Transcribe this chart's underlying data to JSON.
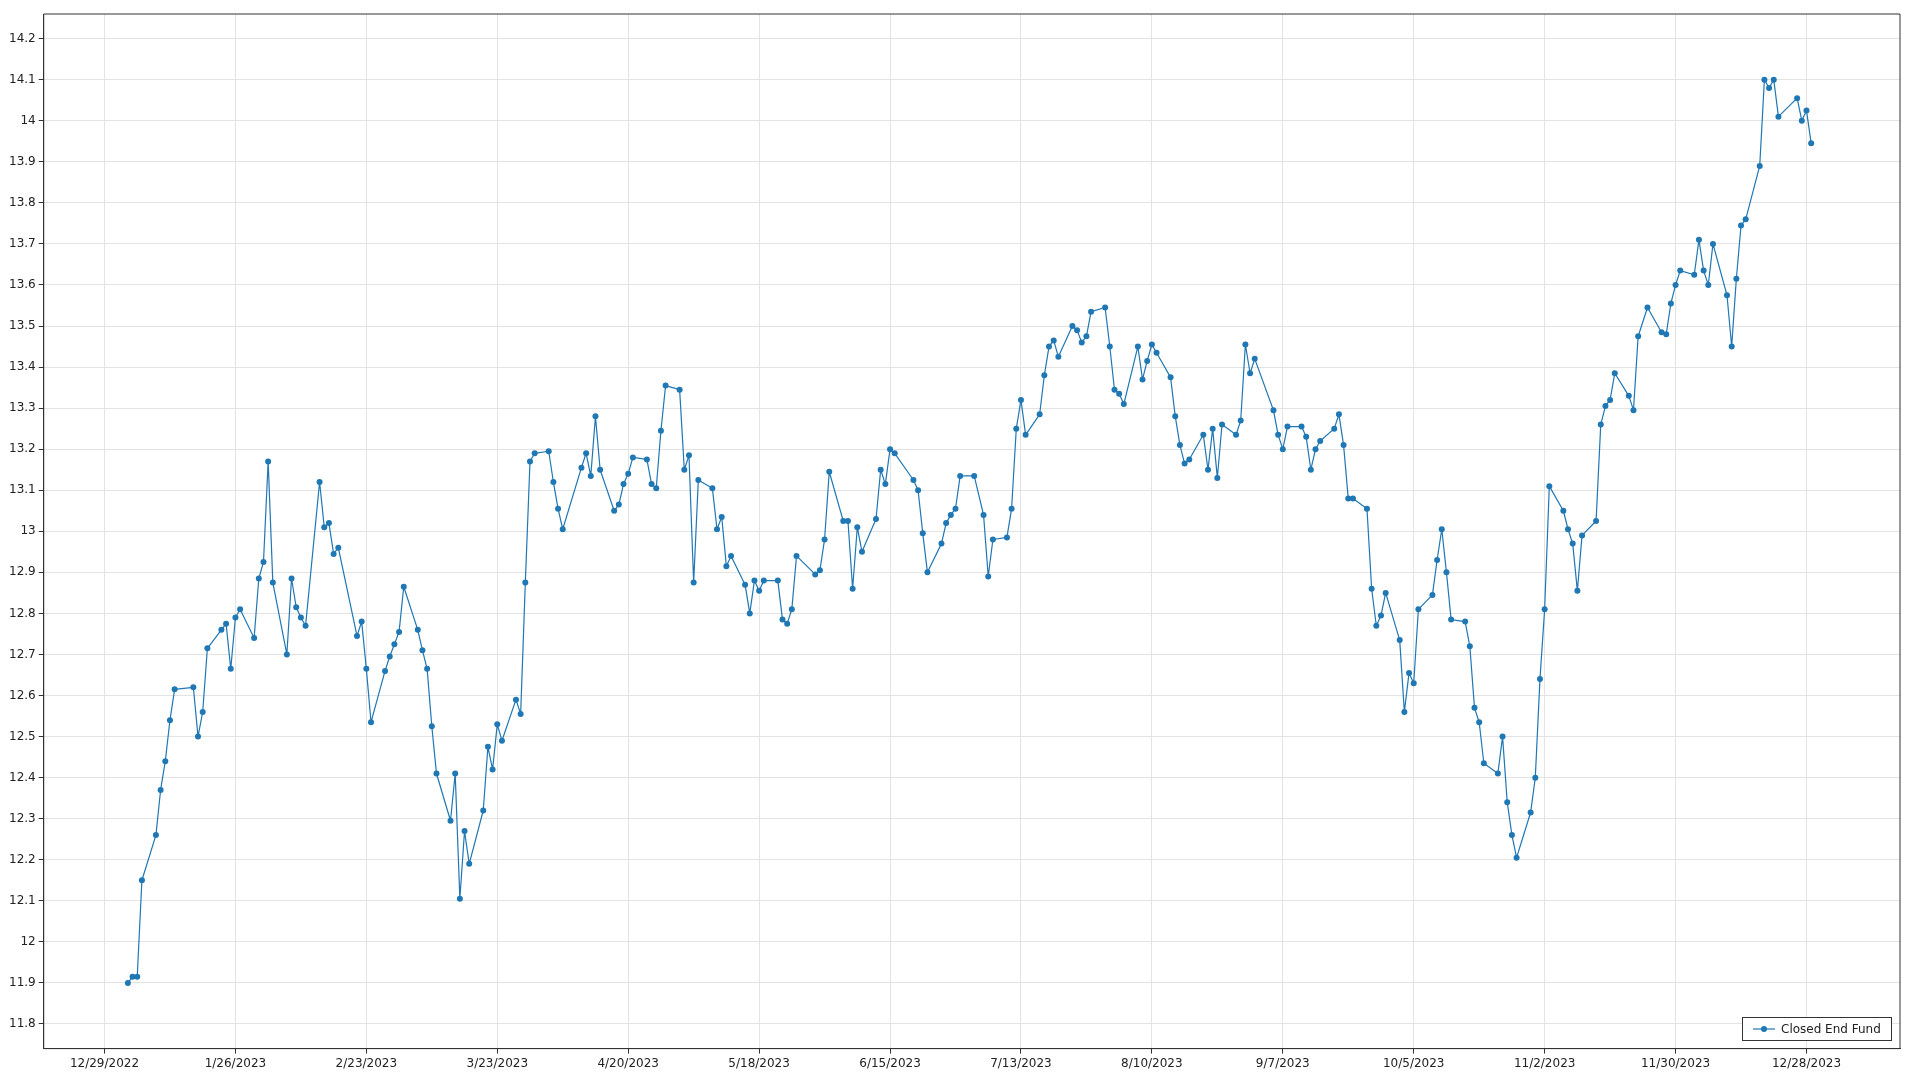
{
  "chart_data": {
    "type": "line",
    "series": [
      {
        "name": "Closed End Fund",
        "color": "#1f77b4",
        "x": [
          "2023-01-03",
          "2023-01-04",
          "2023-01-05",
          "2023-01-06",
          "2023-01-09",
          "2023-01-10",
          "2023-01-11",
          "2023-01-12",
          "2023-01-13",
          "2023-01-17",
          "2023-01-18",
          "2023-01-19",
          "2023-01-20",
          "2023-01-23",
          "2023-01-24",
          "2023-01-25",
          "2023-01-26",
          "2023-01-27",
          "2023-01-30",
          "2023-01-31",
          "2023-02-01",
          "2023-02-02",
          "2023-02-03",
          "2023-02-06",
          "2023-02-07",
          "2023-02-08",
          "2023-02-09",
          "2023-02-10",
          "2023-02-13",
          "2023-02-14",
          "2023-02-15",
          "2023-02-16",
          "2023-02-17",
          "2023-02-21",
          "2023-02-22",
          "2023-02-23",
          "2023-02-24",
          "2023-02-27",
          "2023-02-28",
          "2023-03-01",
          "2023-03-02",
          "2023-03-03",
          "2023-03-06",
          "2023-03-07",
          "2023-03-08",
          "2023-03-09",
          "2023-03-10",
          "2023-03-13",
          "2023-03-14",
          "2023-03-15",
          "2023-03-16",
          "2023-03-17",
          "2023-03-20",
          "2023-03-21",
          "2023-03-22",
          "2023-03-23",
          "2023-03-24",
          "2023-03-27",
          "2023-03-28",
          "2023-03-29",
          "2023-03-30",
          "2023-03-31",
          "2023-04-03",
          "2023-04-04",
          "2023-04-05",
          "2023-04-06",
          "2023-04-10",
          "2023-04-11",
          "2023-04-12",
          "2023-04-13",
          "2023-04-14",
          "2023-04-17",
          "2023-04-18",
          "2023-04-19",
          "2023-04-20",
          "2023-04-21",
          "2023-04-24",
          "2023-04-25",
          "2023-04-26",
          "2023-04-27",
          "2023-04-28",
          "2023-05-01",
          "2023-05-02",
          "2023-05-03",
          "2023-05-04",
          "2023-05-05",
          "2023-05-08",
          "2023-05-09",
          "2023-05-10",
          "2023-05-11",
          "2023-05-12",
          "2023-05-15",
          "2023-05-16",
          "2023-05-17",
          "2023-05-18",
          "2023-05-19",
          "2023-05-22",
          "2023-05-23",
          "2023-05-24",
          "2023-05-25",
          "2023-05-26",
          "2023-05-30",
          "2023-05-31",
          "2023-06-01",
          "2023-06-02",
          "2023-06-05",
          "2023-06-06",
          "2023-06-07",
          "2023-06-08",
          "2023-06-09",
          "2023-06-12",
          "2023-06-13",
          "2023-06-14",
          "2023-06-15",
          "2023-06-16",
          "2023-06-20",
          "2023-06-21",
          "2023-06-22",
          "2023-06-23",
          "2023-06-26",
          "2023-06-27",
          "2023-06-28",
          "2023-06-29",
          "2023-06-30",
          "2023-07-03",
          "2023-07-05",
          "2023-07-06",
          "2023-07-07",
          "2023-07-10",
          "2023-07-11",
          "2023-07-12",
          "2023-07-13",
          "2023-07-14",
          "2023-07-17",
          "2023-07-18",
          "2023-07-19",
          "2023-07-20",
          "2023-07-21",
          "2023-07-24",
          "2023-07-25",
          "2023-07-26",
          "2023-07-27",
          "2023-07-28",
          "2023-07-31",
          "2023-08-01",
          "2023-08-02",
          "2023-08-03",
          "2023-08-04",
          "2023-08-07",
          "2023-08-08",
          "2023-08-09",
          "2023-08-10",
          "2023-08-11",
          "2023-08-14",
          "2023-08-15",
          "2023-08-16",
          "2023-08-17",
          "2023-08-18",
          "2023-08-21",
          "2023-08-22",
          "2023-08-23",
          "2023-08-24",
          "2023-08-25",
          "2023-08-28",
          "2023-08-29",
          "2023-08-30",
          "2023-08-31",
          "2023-09-01",
          "2023-09-05",
          "2023-09-06",
          "2023-09-07",
          "2023-09-08",
          "2023-09-11",
          "2023-09-12",
          "2023-09-13",
          "2023-09-14",
          "2023-09-15",
          "2023-09-18",
          "2023-09-19",
          "2023-09-20",
          "2023-09-21",
          "2023-09-22",
          "2023-09-25",
          "2023-09-26",
          "2023-09-27",
          "2023-09-28",
          "2023-09-29",
          "2023-10-02",
          "2023-10-03",
          "2023-10-04",
          "2023-10-05",
          "2023-10-06",
          "2023-10-09",
          "2023-10-10",
          "2023-10-11",
          "2023-10-12",
          "2023-10-13",
          "2023-10-16",
          "2023-10-17",
          "2023-10-18",
          "2023-10-19",
          "2023-10-20",
          "2023-10-23",
          "2023-10-24",
          "2023-10-25",
          "2023-10-26",
          "2023-10-27",
          "2023-10-30",
          "2023-10-31",
          "2023-11-01",
          "2023-11-02",
          "2023-11-03",
          "2023-11-06",
          "2023-11-07",
          "2023-11-08",
          "2023-11-09",
          "2023-11-10",
          "2023-11-13",
          "2023-11-14",
          "2023-11-15",
          "2023-11-16",
          "2023-11-17",
          "2023-11-20",
          "2023-11-21",
          "2023-11-22",
          "2023-11-24",
          "2023-11-27",
          "2023-11-28",
          "2023-11-29",
          "2023-11-30",
          "2023-12-01",
          "2023-12-04",
          "2023-12-05",
          "2023-12-06",
          "2023-12-07",
          "2023-12-08",
          "2023-12-11",
          "2023-12-12",
          "2023-12-13",
          "2023-12-14",
          "2023-12-15",
          "2023-12-18",
          "2023-12-19",
          "2023-12-20",
          "2023-12-21",
          "2023-12-22",
          "2023-12-26",
          "2023-12-27",
          "2023-12-28",
          "2023-12-29"
        ],
        "values": [
          11.9,
          11.915,
          11.915,
          12.15,
          12.26,
          12.37,
          12.44,
          12.54,
          12.615,
          12.62,
          12.5,
          12.56,
          12.715,
          12.76,
          12.775,
          12.665,
          12.79,
          12.81,
          12.74,
          12.885,
          12.925,
          13.17,
          12.875,
          12.7,
          12.885,
          12.815,
          12.79,
          12.77,
          13.12,
          13.01,
          13.02,
          12.945,
          12.96,
          12.745,
          12.78,
          12.665,
          12.535,
          12.66,
          12.695,
          12.725,
          12.755,
          12.865,
          12.76,
          12.71,
          12.665,
          12.525,
          12.41,
          12.295,
          12.41,
          12.105,
          12.27,
          12.19,
          12.32,
          12.475,
          12.42,
          12.53,
          12.49,
          12.59,
          12.555,
          12.875,
          13.17,
          13.19,
          13.195,
          13.12,
          13.055,
          13.005,
          13.155,
          13.19,
          13.135,
          13.28,
          13.15,
          13.05,
          13.065,
          13.115,
          13.14,
          13.18,
          13.175,
          13.115,
          13.105,
          13.245,
          13.355,
          13.345,
          13.15,
          13.185,
          12.875,
          13.125,
          13.105,
          13.005,
          13.035,
          12.915,
          12.94,
          12.87,
          12.8,
          12.88,
          12.855,
          12.88,
          12.88,
          12.785,
          12.775,
          12.81,
          12.94,
          12.895,
          12.905,
          12.98,
          13.145,
          13.025,
          13.025,
          12.86,
          13.01,
          12.95,
          13.03,
          13.15,
          13.115,
          13.2,
          13.19,
          13.125,
          13.1,
          12.995,
          12.9,
          12.97,
          13.02,
          13.04,
          13.055,
          13.135,
          13.135,
          13.04,
          12.89,
          12.98,
          12.985,
          13.055,
          13.25,
          13.32,
          13.235,
          13.285,
          13.38,
          13.45,
          13.465,
          13.425,
          13.5,
          13.49,
          13.46,
          13.475,
          13.535,
          13.545,
          13.45,
          13.345,
          13.335,
          13.31,
          13.45,
          13.37,
          13.415,
          13.455,
          13.435,
          13.375,
          13.28,
          13.21,
          13.165,
          13.175,
          13.235,
          13.15,
          13.25,
          13.13,
          13.26,
          13.235,
          13.27,
          13.455,
          13.385,
          13.42,
          13.295,
          13.235,
          13.2,
          13.255,
          13.255,
          13.23,
          13.15,
          13.2,
          13.22,
          13.25,
          13.285,
          13.21,
          13.08,
          13.08,
          13.055,
          12.86,
          12.77,
          12.795,
          12.85,
          12.735,
          12.56,
          12.655,
          12.63,
          12.81,
          12.845,
          12.93,
          13.005,
          12.9,
          12.785,
          12.78,
          12.72,
          12.57,
          12.535,
          12.435,
          12.41,
          12.5,
          12.34,
          12.26,
          12.205,
          12.315,
          12.4,
          12.64,
          12.81,
          13.11,
          13.05,
          13.005,
          12.97,
          12.855,
          12.99,
          13.025,
          13.26,
          13.305,
          13.32,
          13.385,
          13.33,
          13.295,
          13.475,
          13.545,
          13.485,
          13.48,
          13.555,
          13.6,
          13.635,
          13.625,
          13.71,
          13.635,
          13.6,
          13.7,
          13.575,
          13.45,
          13.615,
          13.745,
          13.76,
          13.89,
          14.1,
          14.08,
          14.1,
          14.01,
          14.055,
          14.0,
          14.025,
          13.945
        ]
      }
    ],
    "xlim": [
      "2022-12-16",
      "2024-01-17"
    ],
    "xticks": [
      {
        "value": "2022-12-29",
        "label": "12/29/2022"
      },
      {
        "value": "2023-01-26",
        "label": "1/26/2023"
      },
      {
        "value": "2023-02-23",
        "label": "2/23/2023"
      },
      {
        "value": "2023-03-23",
        "label": "3/23/2023"
      },
      {
        "value": "2023-04-20",
        "label": "4/20/2023"
      },
      {
        "value": "2023-05-18",
        "label": "5/18/2023"
      },
      {
        "value": "2023-06-15",
        "label": "6/15/2023"
      },
      {
        "value": "2023-07-13",
        "label": "7/13/2023"
      },
      {
        "value": "2023-08-10",
        "label": "8/10/2023"
      },
      {
        "value": "2023-09-07",
        "label": "9/7/2023"
      },
      {
        "value": "2023-10-05",
        "label": "10/5/2023"
      },
      {
        "value": "2023-11-02",
        "label": "11/2/2023"
      },
      {
        "value": "2023-11-30",
        "label": "11/30/2023"
      },
      {
        "value": "2023-12-28",
        "label": "12/28/2023"
      }
    ],
    "ylim": [
      11.74,
      14.26
    ],
    "yticks": [
      11.8,
      11.9,
      12,
      12.1,
      12.2,
      12.3,
      12.4,
      12.5,
      12.6,
      12.7,
      12.8,
      12.9,
      13,
      13.1,
      13.2,
      13.3,
      13.4,
      13.5,
      13.6,
      13.7,
      13.8,
      13.9,
      14,
      14.1,
      14.2
    ],
    "grid": true,
    "legend": "bottom right",
    "marker": "circle",
    "line_style": "solid"
  }
}
